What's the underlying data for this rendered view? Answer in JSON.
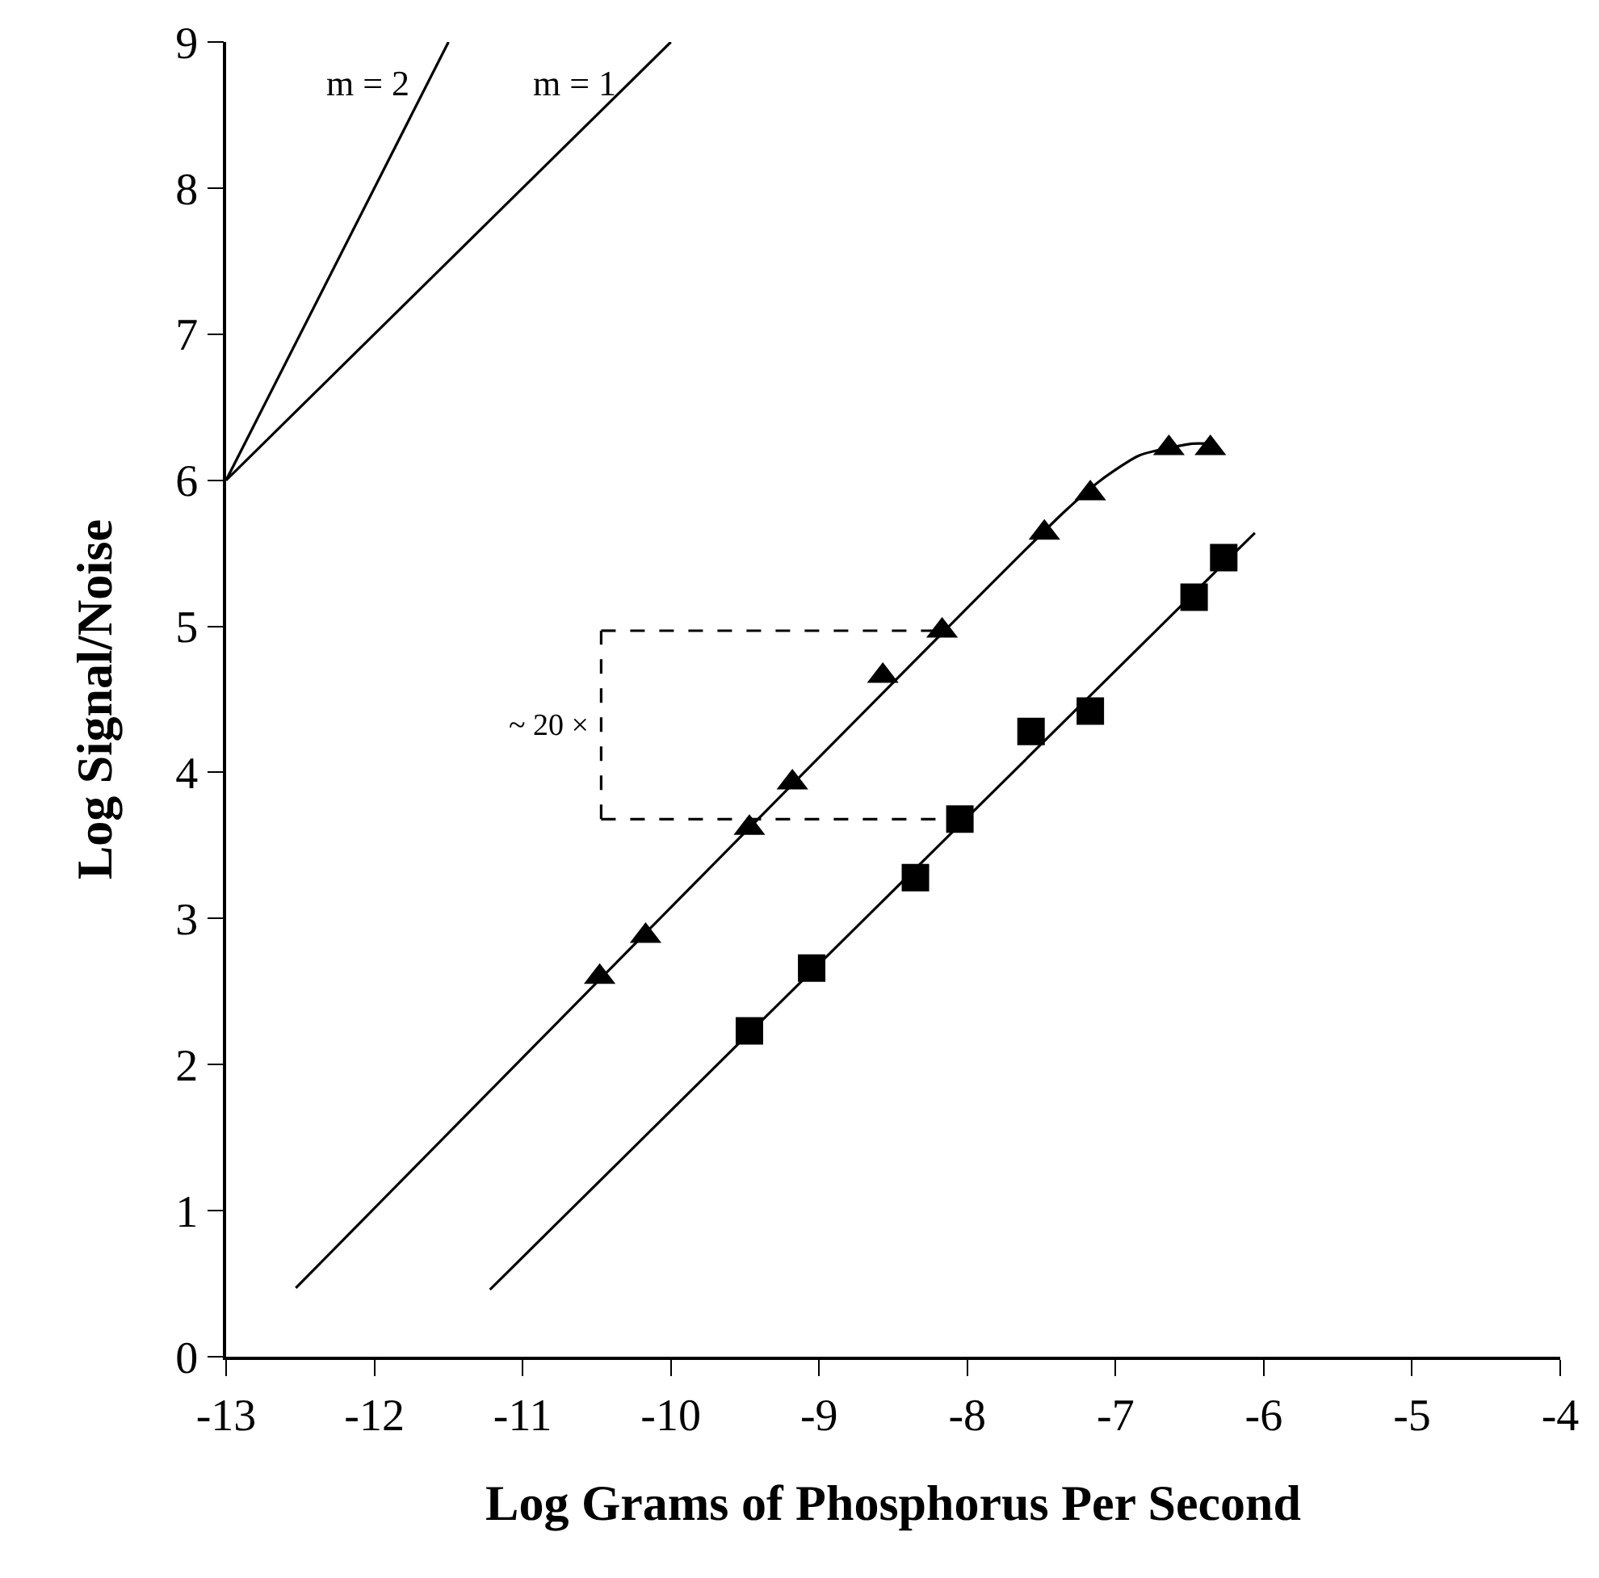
{
  "chart_data": {
    "type": "scatter",
    "xlabel": "Log Grams of Phosphorus Per Second",
    "ylabel": "Log Signal/Noise",
    "xlim": [
      -13,
      -4
    ],
    "ylim": [
      0,
      9
    ],
    "xticks": [
      -13,
      -12,
      -11,
      -10,
      -9,
      -8,
      -7,
      -6,
      -5,
      -4
    ],
    "yticks": [
      0,
      1,
      2,
      3,
      4,
      5,
      6,
      7,
      8,
      9
    ],
    "series": [
      {
        "marker": "triangle",
        "color": "#000000",
        "x": [
          -10.48,
          -10.17,
          -9.47,
          -9.18,
          -8.57,
          -8.17,
          -7.48,
          -7.17,
          -6.64,
          -6.36
        ],
        "values": [
          2.6,
          2.88,
          3.62,
          3.93,
          4.66,
          4.97,
          5.64,
          5.91,
          6.22,
          6.22
        ]
      },
      {
        "marker": "square",
        "color": "#000000",
        "x": [
          -9.47,
          -9.05,
          -8.35,
          -8.05,
          -7.57,
          -7.17,
          -6.47,
          -6.27
        ],
        "values": [
          2.23,
          2.66,
          3.28,
          3.68,
          4.28,
          4.42,
          5.2,
          5.47
        ]
      },
      {
        "type": "line",
        "line_style": "solid",
        "color": "#000000",
        "x": [
          -12.53,
          -7.35,
          -7.1,
          -6.84,
          -6.48,
          -6.36
        ],
        "values": [
          0.47,
          5.78,
          6.0,
          6.17,
          6.25,
          6.25
        ]
      },
      {
        "type": "line",
        "line_style": "solid",
        "color": "#000000",
        "x": [
          -11.22,
          -6.06
        ],
        "values": [
          0.46,
          5.64
        ]
      },
      {
        "type": "line",
        "line_style": "solid",
        "color": "#000000",
        "x": [
          -13,
          -11.5
        ],
        "values": [
          6,
          9
        ]
      },
      {
        "type": "line",
        "line_style": "solid",
        "color": "#000000",
        "x": [
          -13,
          -10
        ],
        "values": [
          6,
          9
        ]
      },
      {
        "type": "line",
        "line_style": "dashed",
        "color": "#000000",
        "x": [
          -10.47,
          -8.17
        ],
        "values": [
          4.97,
          4.97
        ]
      },
      {
        "type": "line",
        "line_style": "dashed",
        "color": "#000000",
        "x": [
          -10.47,
          -8.05
        ],
        "values": [
          3.68,
          3.68
        ]
      },
      {
        "type": "line",
        "line_style": "dashed",
        "color": "#000000",
        "x": [
          -10.47,
          -10.47
        ],
        "values": [
          3.68,
          4.97
        ]
      }
    ],
    "annotations": [
      "m = 2",
      "m = 1",
      "~ 20 ×"
    ]
  }
}
